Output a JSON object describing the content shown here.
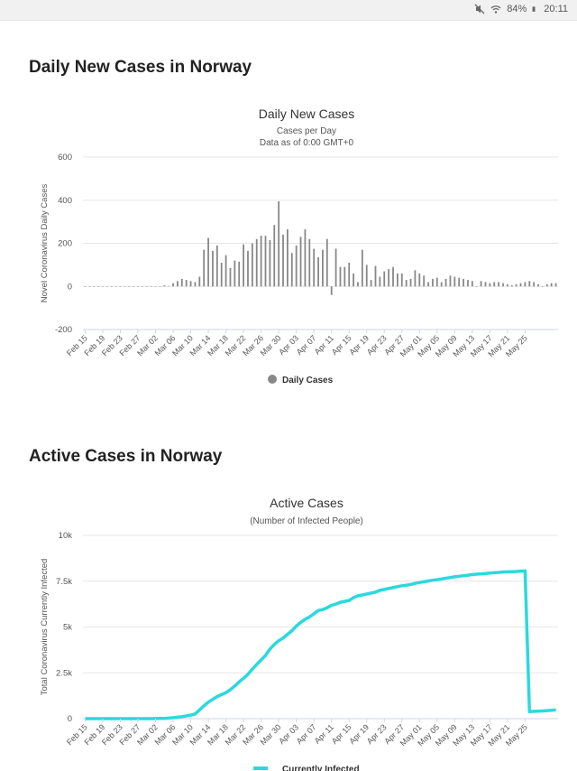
{
  "status_bar": {
    "battery": "84%",
    "time": "20:11"
  },
  "sections": [
    {
      "title": "Daily New Cases in Norway"
    },
    {
      "title": "Active Cases in Norway"
    }
  ],
  "chart_data": [
    {
      "type": "bar",
      "title": "Daily New Cases",
      "subtitle_lines": [
        "Cases per Day",
        "Data as of 0:00 GMT+0"
      ],
      "ylabel": "Novel Coronavirus Daily Cases",
      "xlabel": "",
      "ylim": [
        -200,
        600
      ],
      "yticks": [
        -200,
        0,
        200,
        400,
        600
      ],
      "ytick_labels": [
        "-200",
        "0",
        "200",
        "400",
        "600"
      ],
      "tick_labels": [
        "Feb 15",
        "Feb 19",
        "Feb 23",
        "Feb 27",
        "Mar 02",
        "Mar 06",
        "Mar 10",
        "Mar 14",
        "Mar 18",
        "Mar 22",
        "Mar 26",
        "Mar 30",
        "Apr 03",
        "Apr 07",
        "Apr 11",
        "Apr 15",
        "Apr 19",
        "Apr 23",
        "Apr 27",
        "May 01",
        "May 05",
        "May 09",
        "May 13",
        "May 17",
        "May 21",
        "May 25"
      ],
      "tick_every": 4,
      "series": [
        {
          "name": "Daily Cases",
          "color": "#888888",
          "values": [
            0,
            0,
            0,
            0,
            0,
            0,
            0,
            0,
            0,
            0,
            0,
            0,
            0,
            1,
            0,
            0,
            0,
            0,
            5,
            2,
            15,
            25,
            35,
            30,
            25,
            20,
            45,
            170,
            225,
            165,
            190,
            110,
            145,
            85,
            120,
            115,
            195,
            165,
            200,
            220,
            235,
            235,
            215,
            285,
            395,
            240,
            265,
            155,
            190,
            230,
            265,
            220,
            175,
            135,
            170,
            220,
            -40,
            175,
            90,
            90,
            110,
            60,
            20,
            170,
            100,
            30,
            95,
            45,
            70,
            80,
            90,
            60,
            60,
            30,
            35,
            75,
            60,
            50,
            20,
            35,
            40,
            20,
            35,
            50,
            45,
            40,
            35,
            30,
            25,
            0,
            25,
            20,
            15,
            20,
            20,
            15,
            10,
            5,
            10,
            15,
            20,
            25,
            20,
            10,
            0,
            10,
            15,
            15
          ]
        }
      ],
      "legend": "bottom-center"
    },
    {
      "type": "line",
      "title": "Active Cases",
      "subtitle_lines": [
        "(Number of Infected People)"
      ],
      "ylabel": "Total Coronavirus Currently Infected",
      "xlabel": "",
      "ylim": [
        0,
        10000
      ],
      "yticks": [
        0,
        2500,
        5000,
        7500,
        10000
      ],
      "ytick_labels": [
        "0",
        "2.5k",
        "5k",
        "7.5k",
        "10k"
      ],
      "tick_labels": [
        "Feb 15",
        "Feb 19",
        "Feb 23",
        "Feb 27",
        "Mar 02",
        "Mar 06",
        "Mar 10",
        "Mar 14",
        "Mar 18",
        "Mar 22",
        "Mar 26",
        "Mar 30",
        "Apr 03",
        "Apr 07",
        "Apr 11",
        "Apr 15",
        "Apr 19",
        "Apr 23",
        "Apr 27",
        "May 01",
        "May 05",
        "May 09",
        "May 13",
        "May 17",
        "May 21",
        "May 25"
      ],
      "tick_every": 4,
      "series": [
        {
          "name": "Currently Infected",
          "color": "#2bd9dd",
          "values": [
            0,
            0,
            0,
            0,
            0,
            0,
            0,
            0,
            0,
            0,
            0,
            0,
            0,
            0,
            0,
            0,
            5,
            10,
            15,
            30,
            50,
            80,
            110,
            150,
            190,
            250,
            480,
            700,
            900,
            1050,
            1200,
            1310,
            1420,
            1580,
            1780,
            2000,
            2200,
            2420,
            2700,
            2950,
            3200,
            3450,
            3800,
            4050,
            4250,
            4400,
            4600,
            4800,
            5050,
            5250,
            5420,
            5550,
            5720,
            5900,
            5950,
            6050,
            6180,
            6250,
            6350,
            6400,
            6450,
            6600,
            6700,
            6750,
            6800,
            6850,
            6900,
            7000,
            7050,
            7100,
            7150,
            7200,
            7250,
            7280,
            7320,
            7380,
            7430,
            7470,
            7510,
            7550,
            7580,
            7620,
            7660,
            7700,
            7740,
            7770,
            7800,
            7830,
            7860,
            7880,
            7900,
            7920,
            7940,
            7960,
            7980,
            8000,
            8010,
            8020,
            8030,
            8050,
            8060,
            380,
            400,
            410,
            420,
            440,
            460,
            480
          ]
        }
      ],
      "legend": "bottom-center"
    }
  ]
}
